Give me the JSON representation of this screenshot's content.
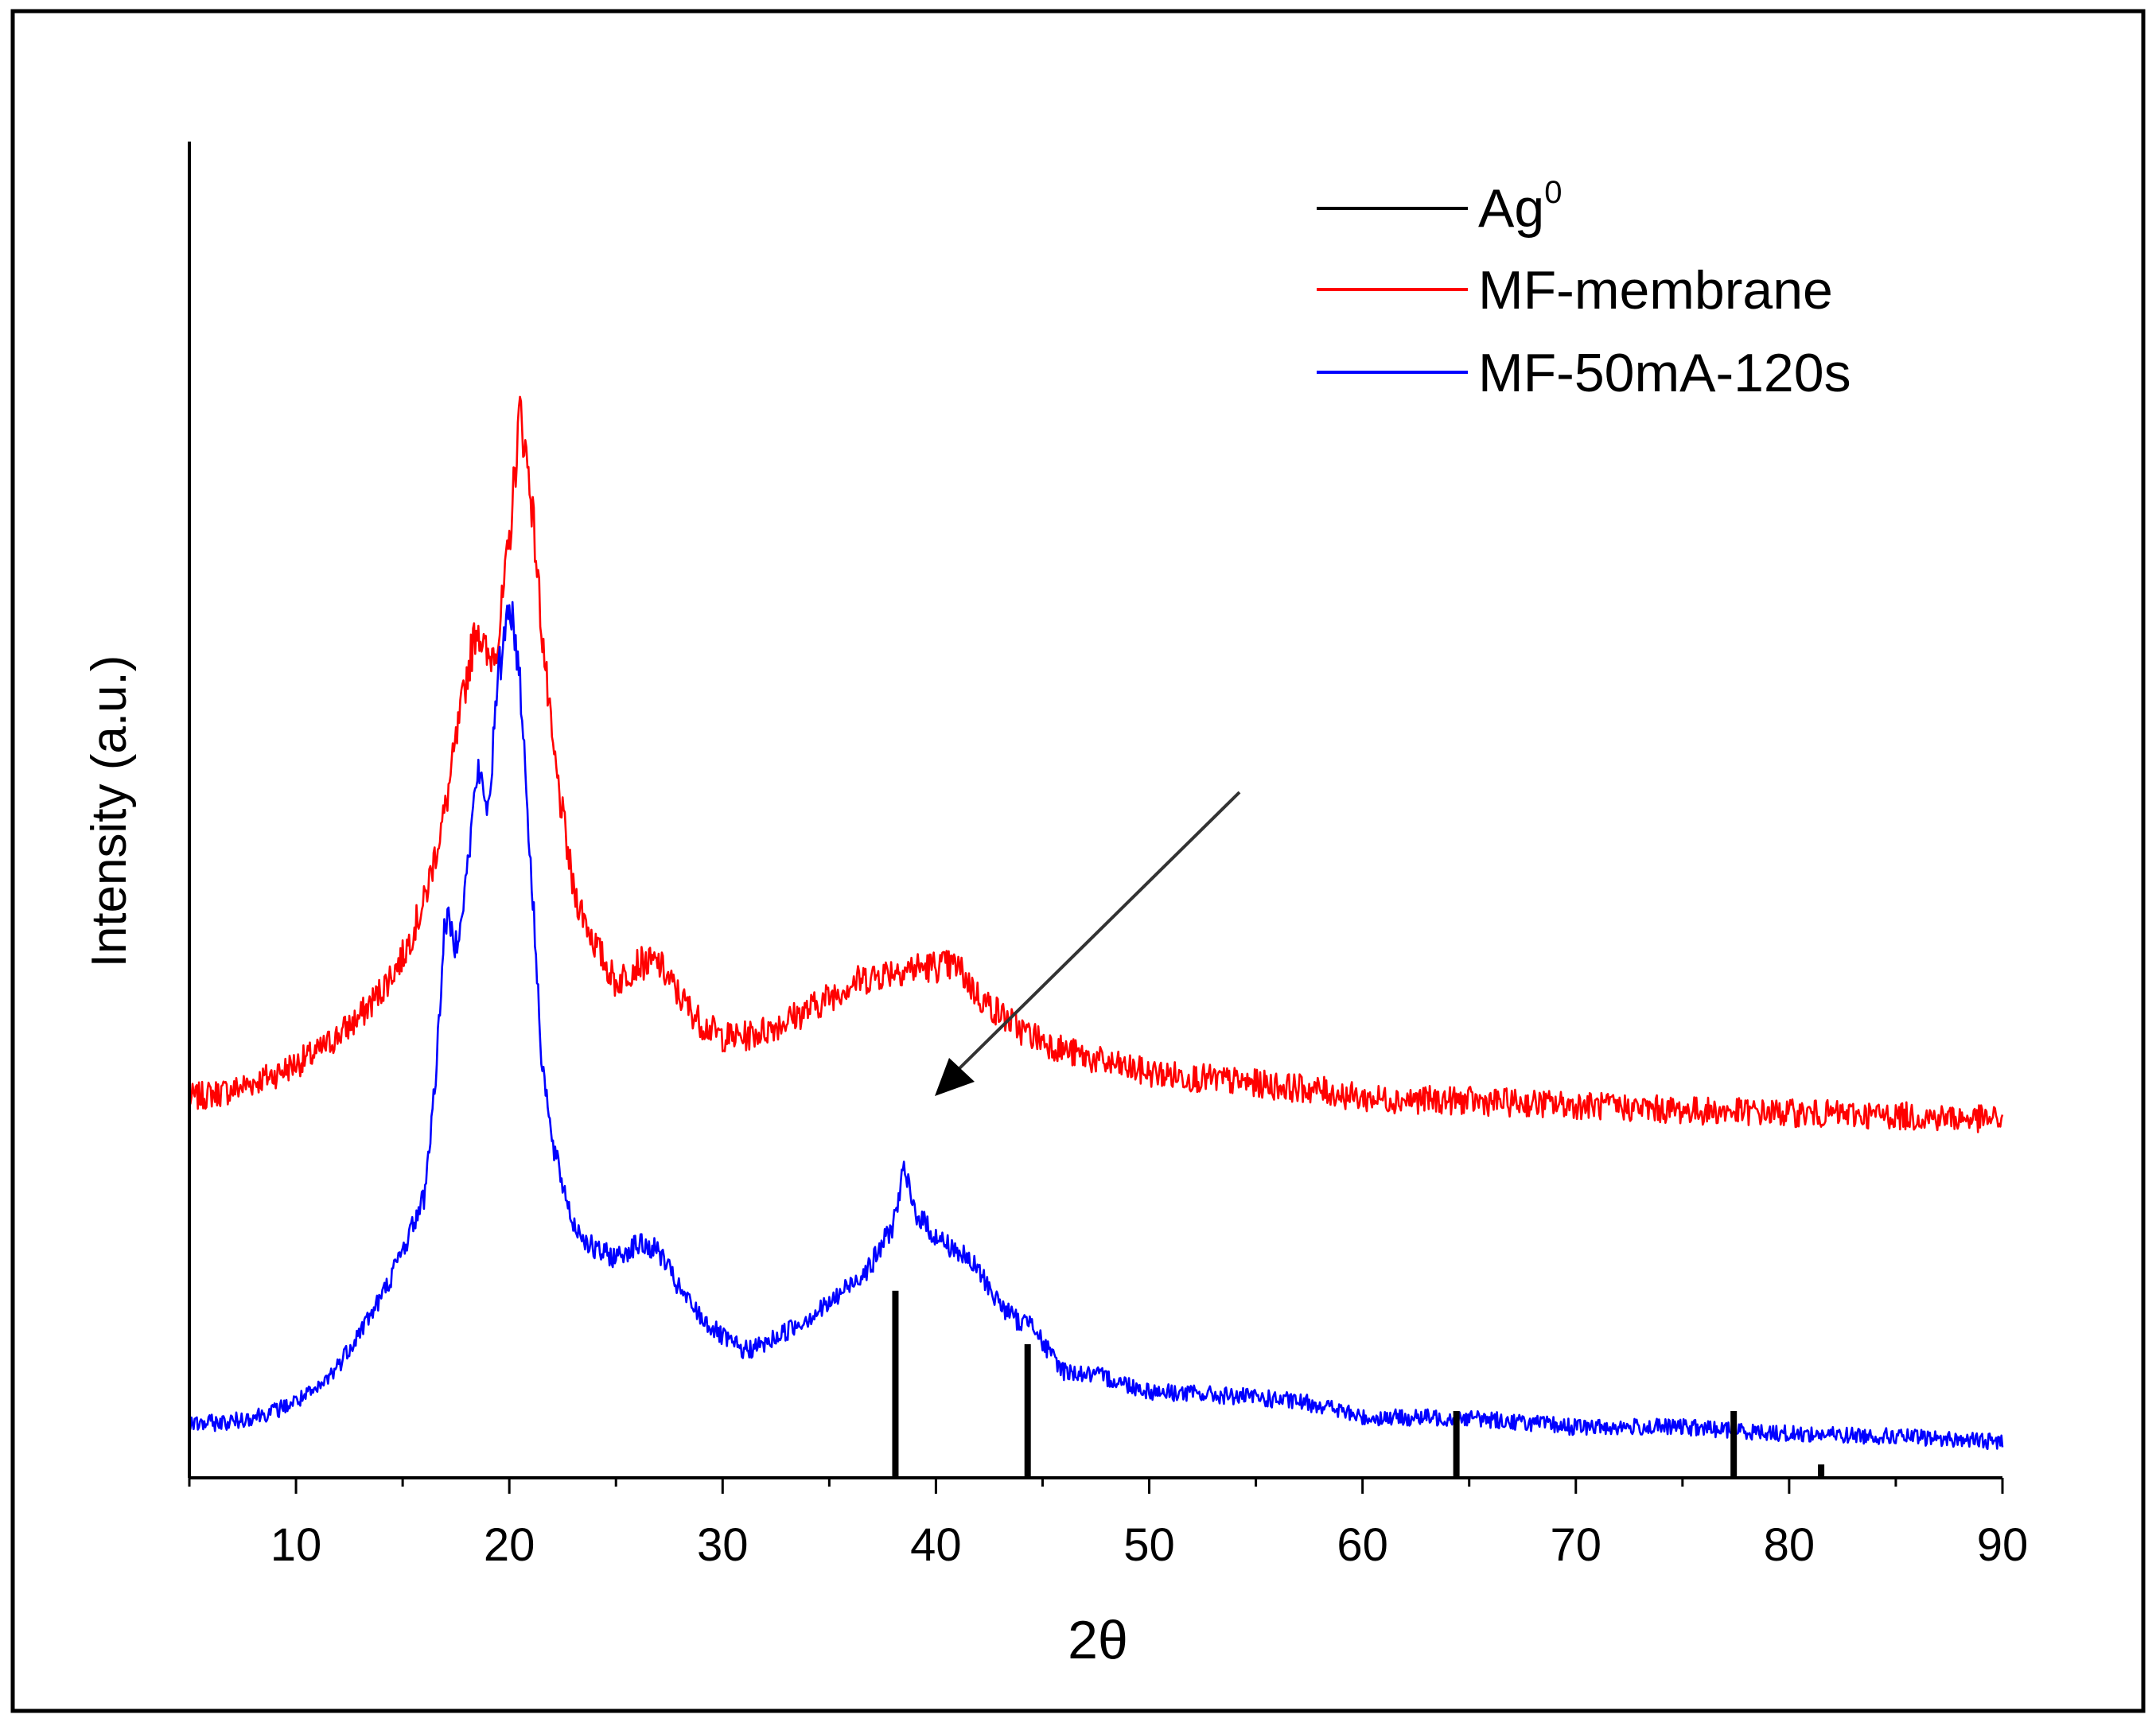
{
  "chart_data": {
    "type": "line",
    "title": "",
    "xlabel": "2θ",
    "ylabel": "Intensity (a.u.)",
    "xlim": [
      5,
      90
    ],
    "ylim": [
      0,
      100
    ],
    "xticks": [
      10,
      20,
      30,
      40,
      50,
      60,
      70,
      80,
      90
    ],
    "grid": false,
    "legend_position": "top-right",
    "series": [
      {
        "name": "Ag",
        "superscript": "0",
        "color": "#000000",
        "style": "sticks",
        "x": [
          38.1,
          44.3,
          64.4,
          77.4,
          81.5
        ],
        "y": [
          14,
          10,
          5,
          5,
          1
        ]
      },
      {
        "name": "MF-membrane",
        "color": "#ff0000",
        "style": "line",
        "x": [
          5,
          7,
          9,
          11,
          13,
          14,
          15,
          16,
          17,
          18,
          18.5,
          19,
          19.5,
          20,
          20.5,
          21,
          21.5,
          22,
          23,
          24,
          25,
          26,
          27,
          28,
          29,
          30,
          31,
          32,
          34,
          36,
          38,
          40,
          41,
          42,
          44,
          46,
          48,
          50,
          55,
          58,
          60,
          65,
          70,
          75,
          80,
          85,
          90
        ],
        "y": [
          28.4,
          29,
          30.2,
          31.8,
          34.5,
          36.5,
          39,
          43,
          50,
          60,
          64,
          61,
          63,
          70,
          80,
          74,
          64,
          55,
          44,
          40,
          37,
          38.5,
          38.5,
          36,
          34,
          33,
          33,
          33.5,
          35,
          37,
          38,
          38.3,
          38.3,
          36,
          33.5,
          32,
          31,
          30.3,
          29.5,
          29,
          28.4,
          28.2,
          27.9,
          27.5,
          27.3,
          27.1,
          26.8
        ]
      },
      {
        "name": "MF-50mA-120s",
        "color": "#0000ff",
        "style": "line",
        "x": [
          5,
          7,
          9,
          11,
          12,
          13,
          14,
          15,
          16,
          16.5,
          17,
          17.5,
          18,
          18.5,
          19,
          19.5,
          20,
          20.5,
          21,
          21.5,
          22,
          23,
          24,
          25,
          26,
          27,
          28,
          29,
          30,
          31,
          32,
          33,
          35,
          37,
          38,
          38.5,
          39,
          40,
          41,
          42,
          43,
          44,
          44.5,
          45,
          46,
          48,
          50,
          55,
          58,
          60,
          65,
          70,
          75,
          80,
          85,
          90
        ],
        "y": [
          4,
          4.2,
          5,
          6.5,
          8.5,
          11,
          13.5,
          17,
          21,
          29,
          42,
          40,
          45,
          53,
          50,
          60,
          66,
          60,
          46,
          32,
          25,
          19,
          17,
          16.5,
          17.5,
          17,
          14,
          12,
          10.5,
          9.5,
          10,
          11,
          13,
          16,
          19,
          23,
          20,
          18,
          17,
          15.5,
          13,
          11.5,
          12,
          10,
          8,
          7.5,
          6.5,
          6,
          5.5,
          4.5,
          4.5,
          3.8,
          3.8,
          3.3,
          3.1,
          2.7
        ]
      }
    ]
  }
}
